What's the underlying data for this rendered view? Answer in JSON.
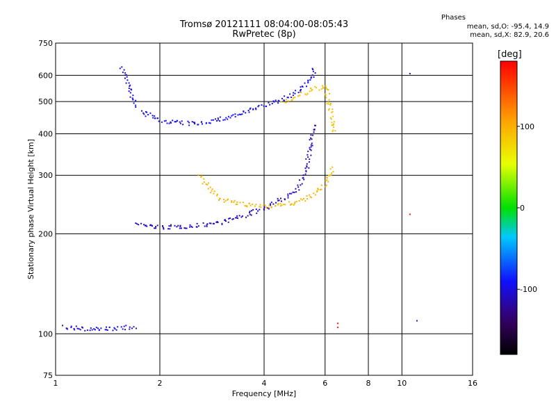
{
  "header": {
    "title": "Tromsø 20121111 08:04:00-08:05:43",
    "subtitle": "RwPretec (8p)"
  },
  "phase_box": {
    "heading": "Phases",
    "line_o": "mean, sd,O: -95.4, 14.9",
    "line_x": "mean, sd,X:  82.9, 20.6"
  },
  "chart_data": {
    "type": "scatter",
    "title": "Tromsø 20121111 08:04:00-08:05:43",
    "subtitle": "RwPretec (8p)",
    "xlabel": "Frequency [MHz]",
    "ylabel": "Stationary phase Virtual Height [km]",
    "x_scale": "log",
    "y_scale": "log",
    "xlim": [
      1,
      16
    ],
    "ylim": [
      75,
      750
    ],
    "x_ticks": [
      1,
      2,
      4,
      6,
      8,
      10,
      16
    ],
    "y_ticks": [
      75,
      100,
      200,
      300,
      400,
      500,
      600,
      750
    ],
    "grid": true,
    "colorbar": {
      "label": "[deg]",
      "range": [
        -180,
        180
      ],
      "ticks": [
        100,
        0,
        -100
      ],
      "colormap": "rainbow"
    },
    "traces": [
      {
        "mode": "O",
        "layer": "F1 cusp",
        "phase_deg": -100,
        "x": [
          1.55,
          1.58,
          1.62,
          1.65,
          1.7
        ],
        "y": [
          640,
          600,
          560,
          520,
          480
        ]
      },
      {
        "mode": "O",
        "layer": "F2 bottom",
        "phase_deg": -110,
        "x": [
          1.7,
          2.0,
          2.5,
          3.0,
          3.5,
          4.0,
          4.5,
          5.0,
          5.3,
          5.55
        ],
        "y": [
          215,
          210,
          212,
          218,
          228,
          240,
          255,
          278,
          320,
          430
        ]
      },
      {
        "mode": "O",
        "layer": "F2 top",
        "phase_deg": -95,
        "x": [
          1.75,
          2.0,
          2.5,
          3.0,
          3.5,
          4.0,
          4.5,
          5.0,
          5.4,
          5.6
        ],
        "y": [
          470,
          440,
          430,
          445,
          465,
          490,
          510,
          540,
          580,
          640
        ]
      },
      {
        "mode": "X",
        "layer": "F2 bottom",
        "phase_deg": 95,
        "x": [
          2.6,
          2.8,
          3.0,
          3.5,
          4.0,
          4.5,
          5.0,
          5.5,
          6.0,
          6.3
        ],
        "y": [
          300,
          270,
          255,
          245,
          244,
          246,
          250,
          262,
          282,
          320
        ]
      },
      {
        "mode": "X",
        "layer": "F2 top",
        "phase_deg": 90,
        "x": [
          4.5,
          5.0,
          5.5,
          6.0,
          6.2,
          6.35
        ],
        "y": [
          500,
          520,
          545,
          560,
          470,
          400
        ]
      },
      {
        "mode": "O",
        "layer": "E",
        "phase_deg": -100,
        "x": [
          1.05,
          1.2,
          1.4,
          1.6,
          1.7
        ],
        "y": [
          105,
          104,
          104,
          105,
          105
        ]
      }
    ],
    "isolated_points": [
      {
        "x": 6.5,
        "y": 108,
        "phase_deg": 170
      },
      {
        "x": 6.5,
        "y": 105,
        "phase_deg": 170
      },
      {
        "x": 10.5,
        "y": 230,
        "phase_deg": 170
      },
      {
        "x": 10.5,
        "y": 610,
        "phase_deg": -120
      },
      {
        "x": 11.0,
        "y": 110,
        "phase_deg": -100
      }
    ]
  }
}
